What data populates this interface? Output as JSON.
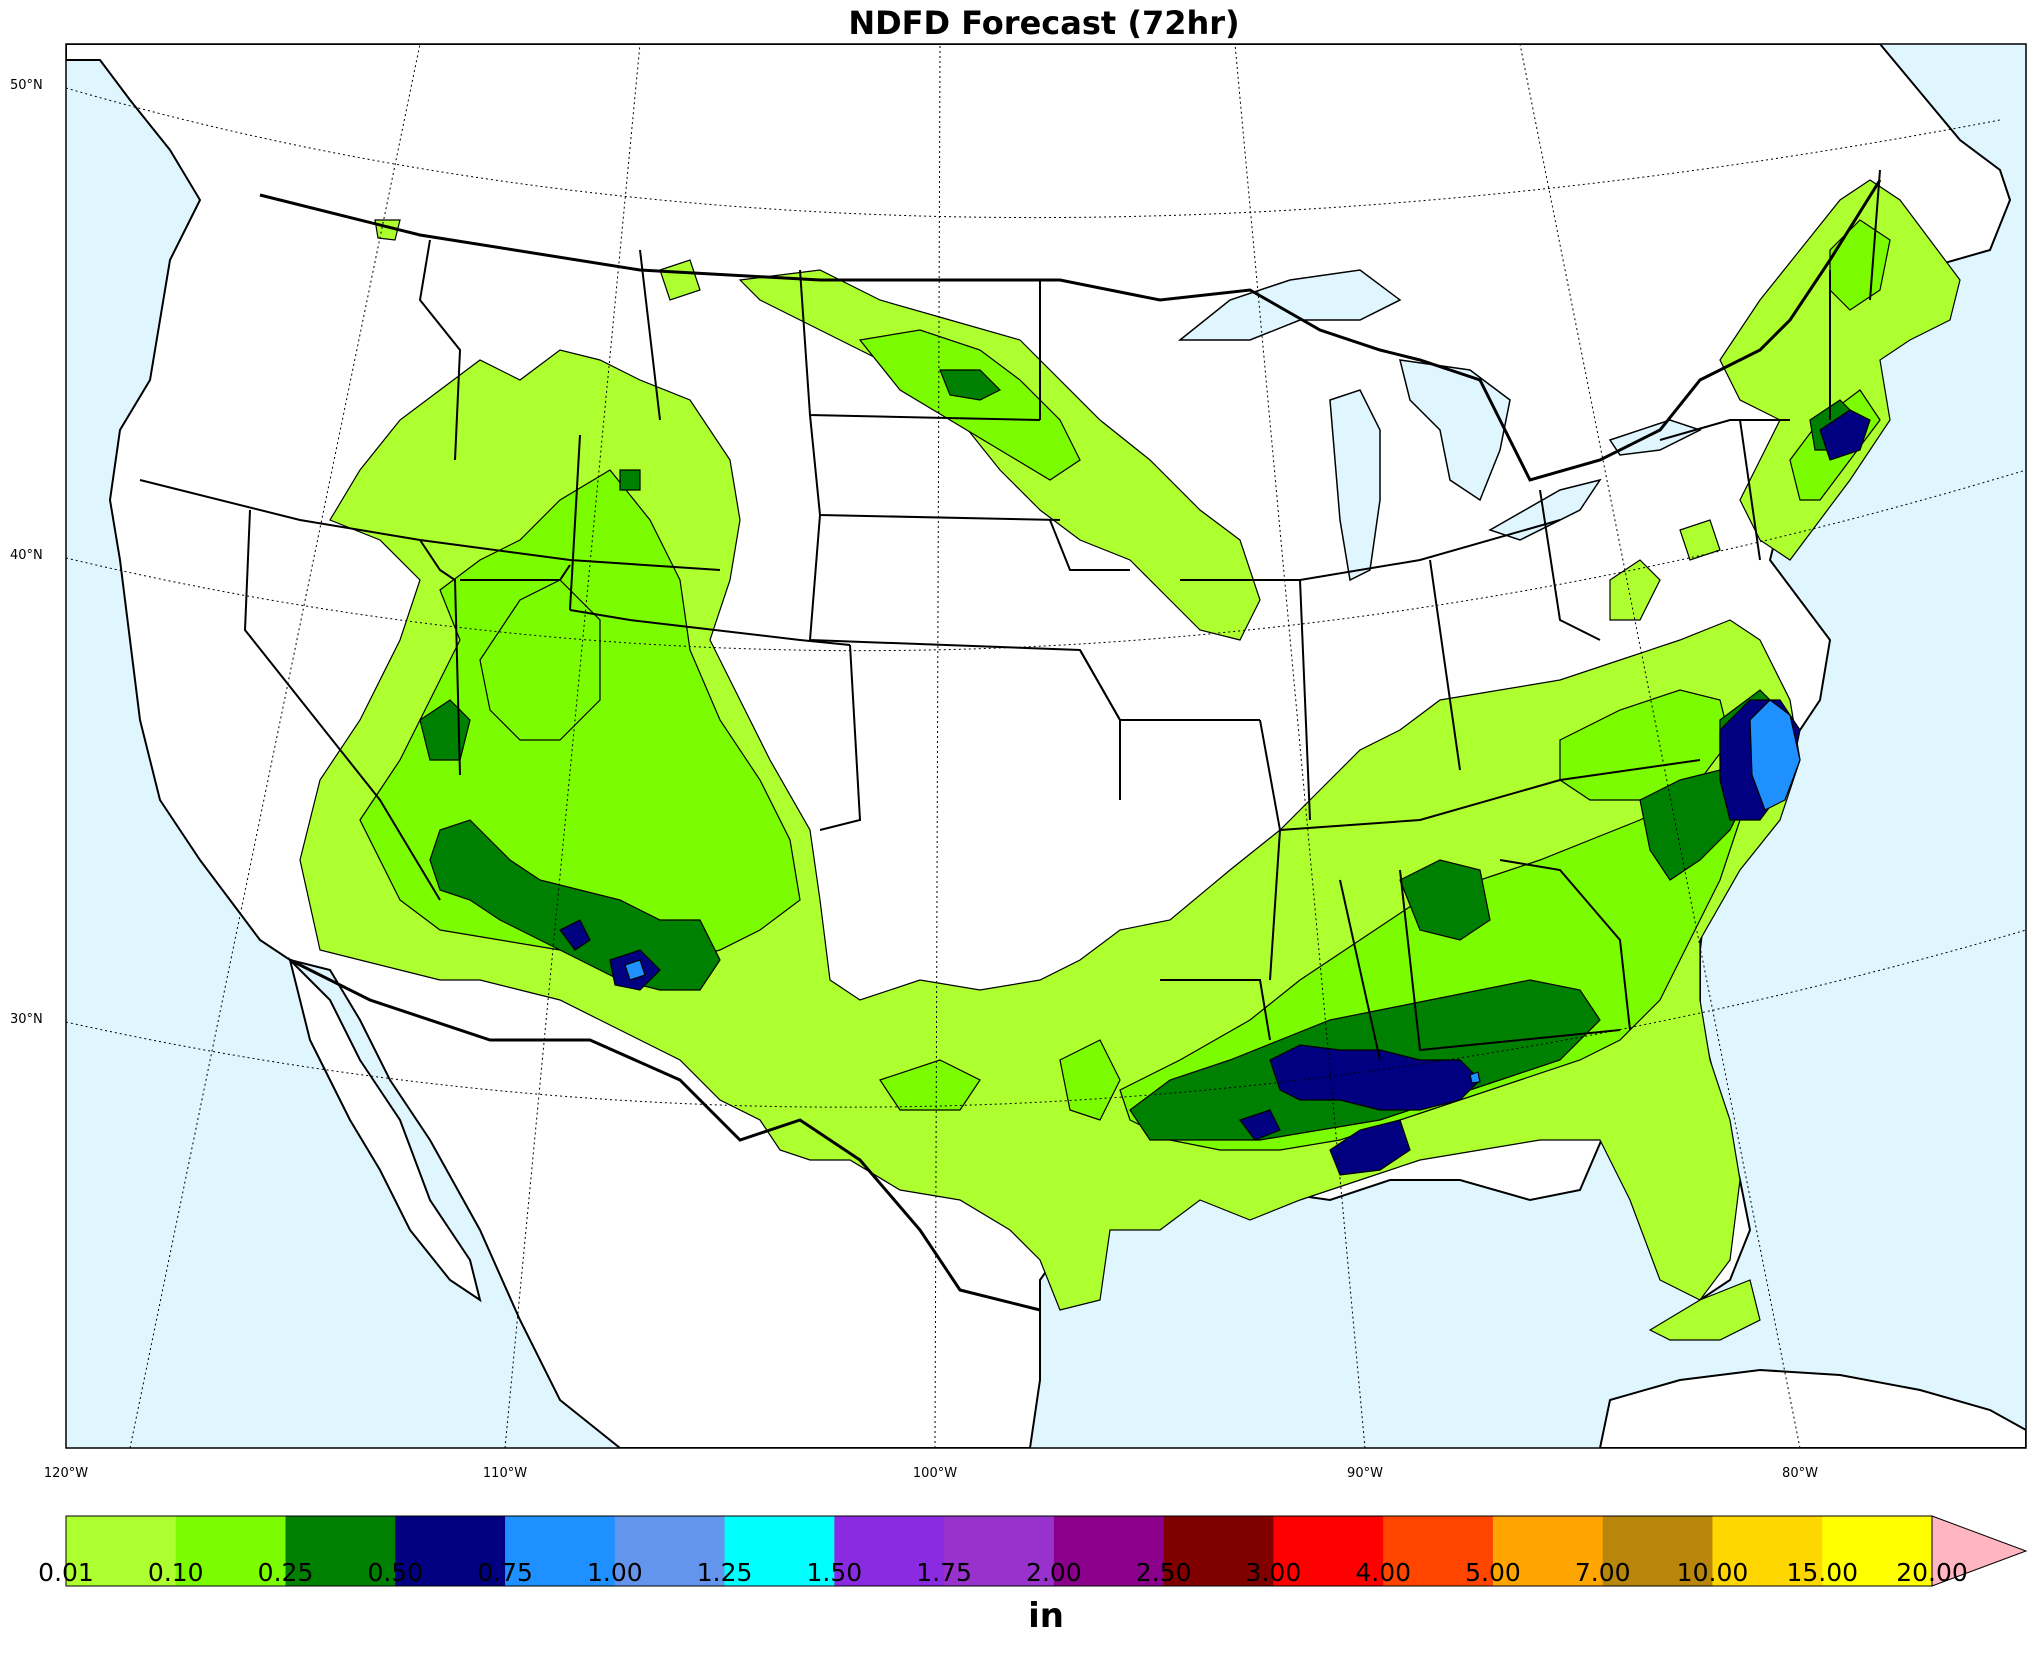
{
  "title": "NDFD Forecast (72hr)",
  "lat_labels": [
    "50°N",
    "40°N",
    "30°N"
  ],
  "lon_labels": [
    "120°W",
    "110°W",
    "100°W",
    "90°W",
    "80°W"
  ],
  "colorbar": {
    "units": "in",
    "ticks": [
      "0.01",
      "0.10",
      "0.25",
      "0.50",
      "0.75",
      "1.00",
      "1.25",
      "1.50",
      "1.75",
      "2.00",
      "2.50",
      "3.00",
      "4.00",
      "5.00",
      "7.00",
      "10.00",
      "15.00",
      "20.00"
    ],
    "colors": [
      "#adff2f",
      "#7cfc00",
      "#008000",
      "#000080",
      "#1e90ff",
      "#6495ed",
      "#00ffff",
      "#8a2be2",
      "#9932cc",
      "#8b008b",
      "#800000",
      "#ff0000",
      "#ff4500",
      "#ffa500",
      "#b8860b",
      "#ffd700",
      "#ffff00"
    ],
    "extend_color": "#ffb6c1"
  },
  "colors": {
    "water": "#dff6ff",
    "land": "#ffffff",
    "precip_low": "#adff2f",
    "precip_010": "#7cfc00",
    "precip_025": "#008000",
    "precip_050": "#000080",
    "precip_075": "#1e90ff"
  }
}
